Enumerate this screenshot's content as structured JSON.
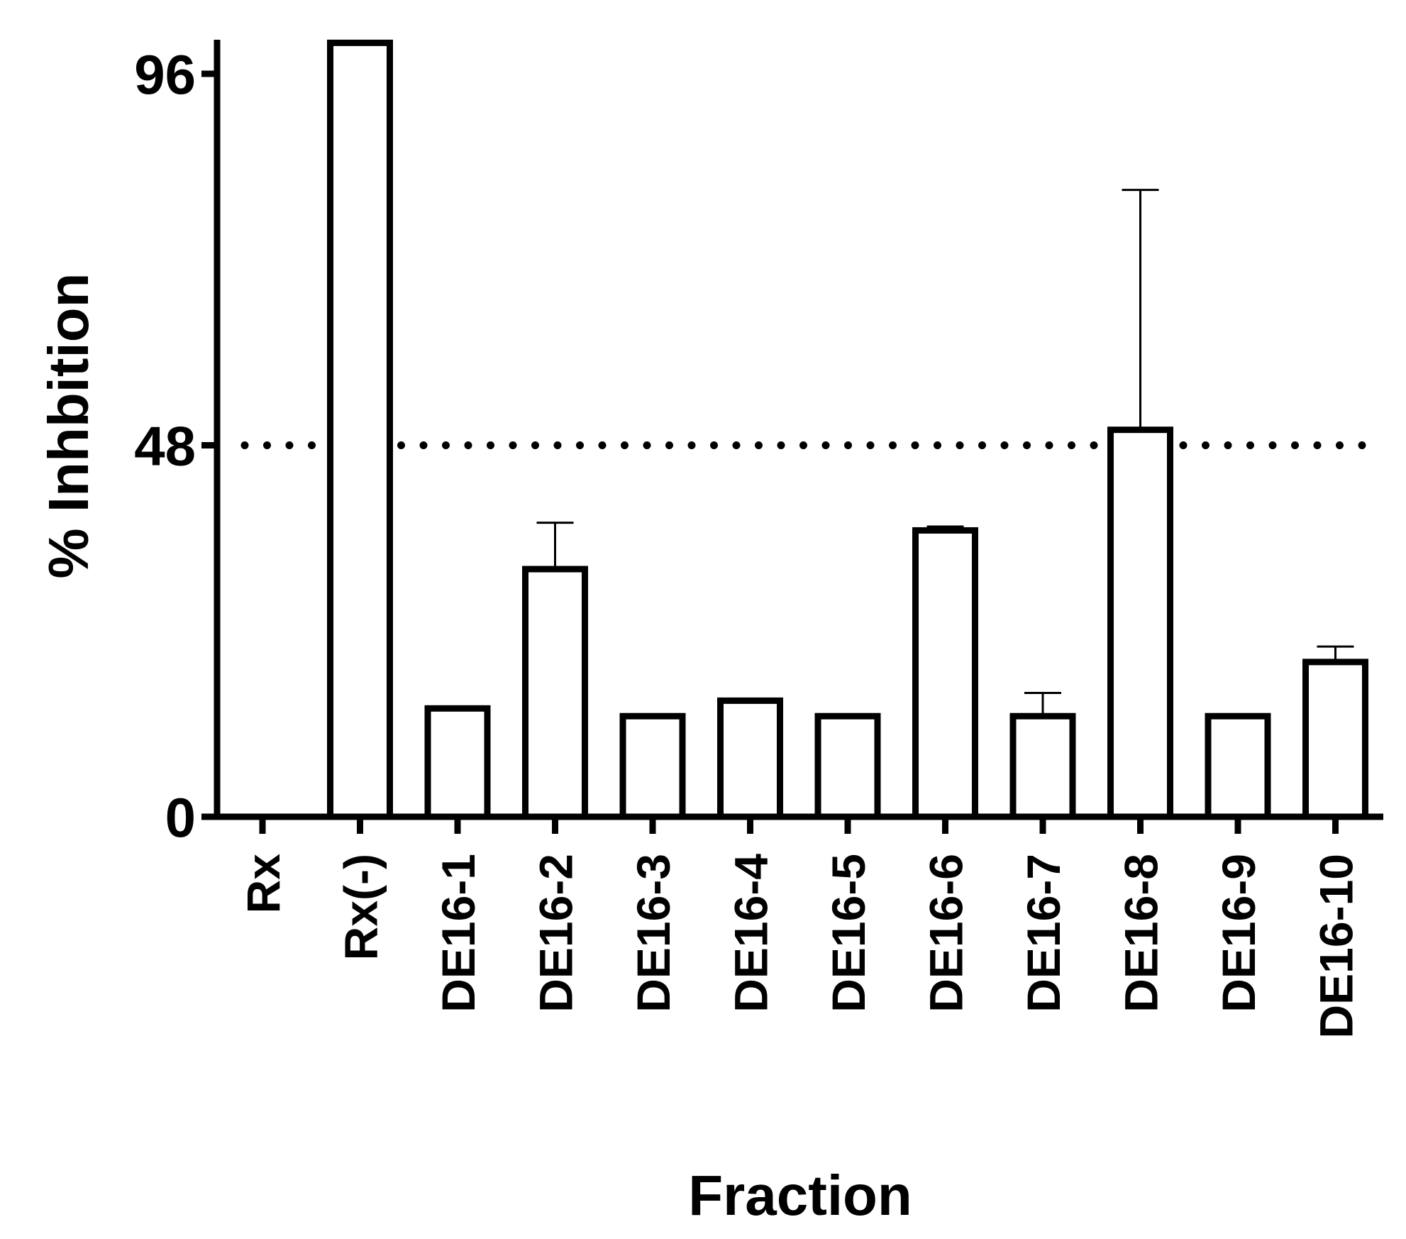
{
  "chart_data": {
    "type": "bar",
    "xlabel": "Fraction",
    "ylabel": "% Inhbition",
    "ylim": [
      0,
      100
    ],
    "yticks": [
      0,
      48,
      96
    ],
    "categories": [
      "Rx",
      "Rx(-)",
      "DE16-1",
      "DE16-2",
      "DE16-3",
      "DE16-4",
      "DE16-5",
      "DE16-6",
      "DE16-7",
      "DE16-8",
      "DE16-9",
      "DE16-10"
    ],
    "values": [
      0,
      100,
      14,
      32,
      13,
      15,
      13,
      37,
      13,
      50,
      13,
      20
    ],
    "errors": [
      0,
      0,
      0,
      6,
      0,
      0,
      0,
      0.5,
      3,
      31,
      0,
      2
    ],
    "reference_line": {
      "value": 48,
      "style": "dotted"
    },
    "bar_fill": "#ffffff",
    "bar_stroke": "#000000",
    "grid": false,
    "legend": "none"
  }
}
